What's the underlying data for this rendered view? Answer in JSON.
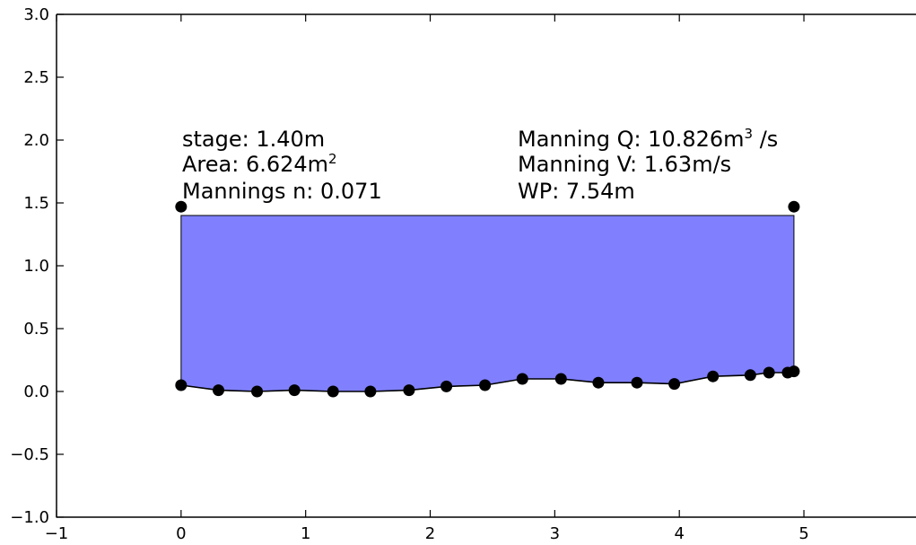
{
  "chart_data": {
    "type": "area",
    "xlim": [
      -1,
      5.9
    ],
    "ylim": [
      -1.0,
      3.0
    ],
    "x_ticks": [
      -1,
      0,
      1,
      2,
      3,
      4,
      5
    ],
    "x_tick_labels": [
      "−1",
      "0",
      "1",
      "2",
      "3",
      "4",
      "5"
    ],
    "y_ticks": [
      -1.0,
      -0.5,
      0.0,
      0.5,
      1.0,
      1.5,
      2.0,
      2.5,
      3.0
    ],
    "y_tick_labels": [
      "−1.0",
      "−0.5",
      "0.0",
      "0.5",
      "1.0",
      "1.5",
      "2.0",
      "2.5",
      "3.0"
    ],
    "grid": false,
    "water_stage": 1.4,
    "fill_color": "#8080ff",
    "marker_color": "#000000",
    "bank_points": {
      "x": [
        0.0,
        4.92
      ],
      "y": [
        1.47,
        1.47
      ]
    },
    "profile": {
      "x": [
        0.0,
        0.3,
        0.61,
        0.91,
        1.22,
        1.52,
        1.83,
        2.13,
        2.44,
        2.74,
        3.05,
        3.35,
        3.66,
        3.96,
        4.27,
        4.57,
        4.72,
        4.87,
        4.92
      ],
      "y": [
        0.05,
        0.01,
        0.0,
        0.01,
        0.0,
        0.0,
        0.01,
        0.04,
        0.05,
        0.1,
        0.1,
        0.07,
        0.07,
        0.06,
        0.12,
        0.13,
        0.15,
        0.15,
        0.16
      ]
    },
    "annotations": {
      "stage": "stage: 1.40m",
      "area_prefix": "Area: 6.624m",
      "area_sup": "2",
      "mannings_n": "Mannings n: 0.071",
      "manning_q_prefix": "Manning Q: 10.826m",
      "manning_q_sup": "3",
      "manning_q_suffix": " /s",
      "manning_v": "Manning V: 1.63m/s",
      "wp": "WP: 7.54m"
    }
  }
}
